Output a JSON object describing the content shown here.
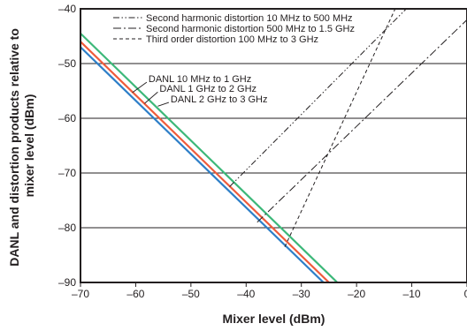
{
  "chart_data": {
    "type": "line",
    "title": "",
    "xlabel": "Mixer level (dBm)",
    "ylabel_lines": [
      "DANL and distortion products relative to",
      "mixer level (dBm)"
    ],
    "xlim": [
      -70,
      0
    ],
    "ylim": [
      -90,
      -40
    ],
    "x_ticks": [
      -70,
      -60,
      -50,
      -40,
      -30,
      -20,
      -10,
      0
    ],
    "x_tick_labels": [
      "–70",
      "–60",
      "–50",
      "–40",
      "–30",
      "–20",
      "–10",
      "0"
    ],
    "y_ticks": [
      -90,
      -80,
      -70,
      -60,
      -50,
      -40
    ],
    "y_tick_labels": [
      "–90",
      "–80",
      "–70",
      "–60",
      "–50",
      "–40"
    ],
    "grid": "horizontal",
    "legend_position": "top-right",
    "series": [
      {
        "name": "DANL 10 MHz to 1 GHz",
        "style": "solid",
        "color": "#2e7fc8",
        "x": [
          -70,
          -26
        ],
        "y": [
          -47,
          -90
        ]
      },
      {
        "name": "DANL 1 GHz to 2 GHz",
        "style": "solid",
        "color": "#ef5b3b",
        "x": [
          -70,
          -25
        ],
        "y": [
          -46,
          -90
        ]
      },
      {
        "name": "DANL 2 GHz to 3 GHz",
        "style": "solid",
        "color": "#3cb879",
        "x": [
          -70,
          -23.5
        ],
        "y": [
          -44.5,
          -90
        ]
      },
      {
        "name": "Second harmonic distortion 10 MHz to 500 MHz",
        "style": "dash-dot-dot",
        "color": "#231f20",
        "x": [
          -43,
          -11
        ],
        "y": [
          -72.5,
          -40
        ]
      },
      {
        "name": "Second harmonic distortion 500 MHz to 1.5 GHz",
        "style": "dash-dot",
        "color": "#231f20",
        "x": [
          -38,
          0
        ],
        "y": [
          -79,
          -42
        ]
      },
      {
        "name": "Third order distortion 100 MHz to 3 GHz",
        "style": "dashed",
        "color": "#231f20",
        "x": [
          -33,
          -13
        ],
        "y": [
          -83.5,
          -40
        ]
      }
    ],
    "annotations": [
      {
        "text": "DANL 10 MHz to 1 GHz",
        "pointer": {
          "from": [
            -58,
            -53.4
          ],
          "to": [
            -60.6,
            -55.3
          ]
        }
      },
      {
        "text": "DANL 1 GHz to 2 GHz",
        "pointer": {
          "from": [
            -56,
            -55.2
          ],
          "to": [
            -58.4,
            -57.3
          ]
        }
      },
      {
        "text": "DANL 2 GHz to 3 GHz",
        "pointer": {
          "from": [
            -54,
            -57.1
          ],
          "to": [
            -56,
            -57.8
          ]
        }
      }
    ]
  }
}
